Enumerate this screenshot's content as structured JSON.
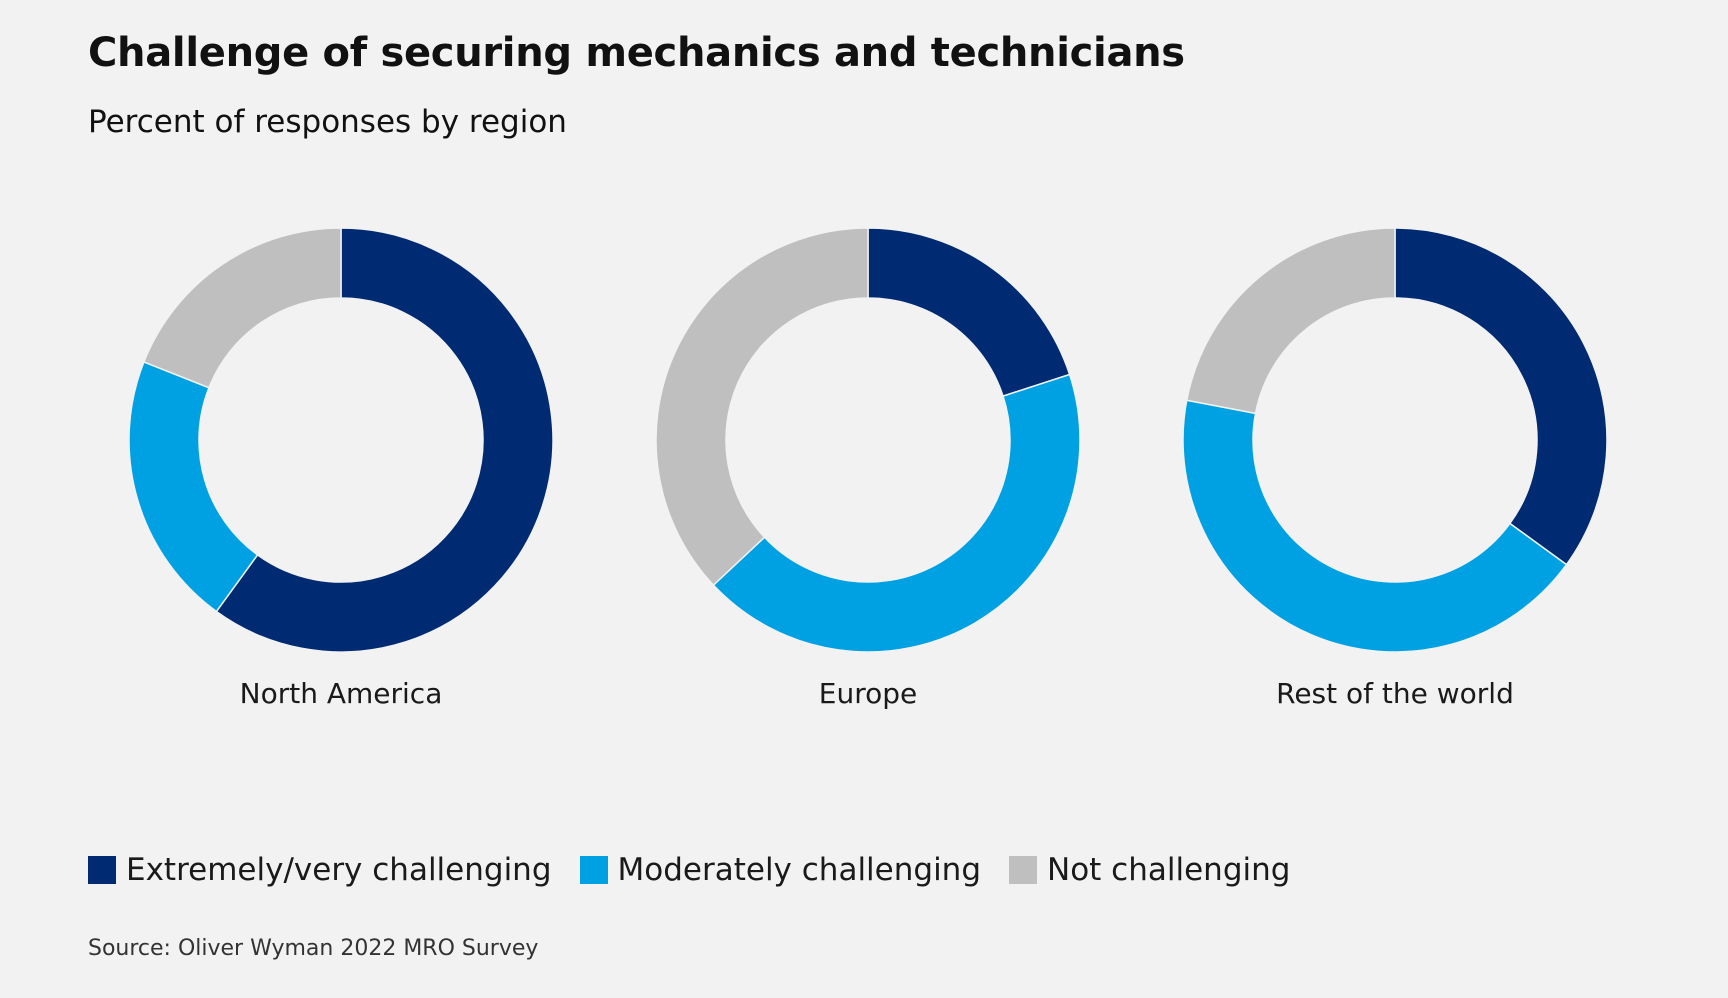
{
  "header": {
    "title": "Challenge of securing mechanics and technicians",
    "subtitle": "Percent of responses by region"
  },
  "chart_data": {
    "type": "pie",
    "variant": "donut",
    "title": "Challenge of securing mechanics and technicians",
    "subtitle": "Percent of responses by region",
    "categories": [
      "Extremely/very challenging",
      "Moderately challenging",
      "Not challenging"
    ],
    "colors": [
      "#002b72",
      "#00a1e2",
      "#bfbfbf"
    ],
    "charts": [
      {
        "region": "North America",
        "values": [
          60,
          21,
          19
        ]
      },
      {
        "region": "Europe",
        "values": [
          20,
          43,
          37
        ]
      },
      {
        "region": "Rest of the world",
        "values": [
          35,
          43,
          22
        ]
      }
    ],
    "legend_position": "bottom-left"
  },
  "legend": {
    "items": [
      {
        "label": "Extremely/very challenging",
        "color": "#002b72"
      },
      {
        "label": "Moderately challenging",
        "color": "#00a1e2"
      },
      {
        "label": "Not challenging",
        "color": "#bfbfbf"
      }
    ]
  },
  "footer": {
    "source": "Source: Oliver Wyman 2022 MRO Survey"
  }
}
